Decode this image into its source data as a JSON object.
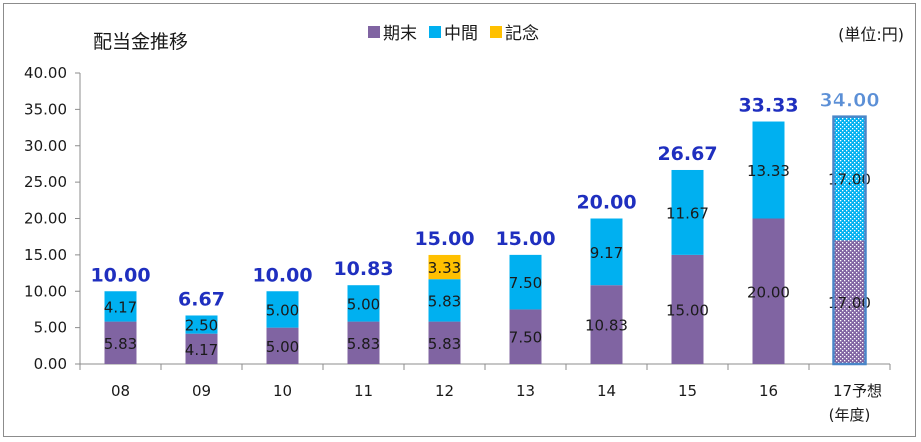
{
  "chart_data": {
    "type": "bar",
    "stacked": true,
    "title": "配当金推移",
    "unit_note": "(単位:円)",
    "x_axis_unit": "(年度)",
    "categories": [
      "08",
      "09",
      "10",
      "11",
      "12",
      "13",
      "14",
      "15",
      "16",
      "17予想"
    ],
    "ylim": [
      0,
      40
    ],
    "yticks": [
      "0.00",
      "5.00",
      "10.00",
      "15.00",
      "20.00",
      "25.00",
      "30.00",
      "35.00",
      "40.00"
    ],
    "grid": false,
    "legend_position": "top-center",
    "series": [
      {
        "name": "期末",
        "color": "#8064a2",
        "values": [
          5.83,
          4.17,
          5.0,
          5.83,
          5.83,
          7.5,
          10.83,
          15.0,
          20.0,
          17.0
        ],
        "labels": [
          "5.83",
          "4.17",
          "5.00",
          "5.83",
          "5.83",
          "7.50",
          "10.83",
          "15.00",
          "20.00",
          "17.00"
        ]
      },
      {
        "name": "中間",
        "color": "#00b0f0",
        "values": [
          4.17,
          2.5,
          5.0,
          5.0,
          5.83,
          7.5,
          9.17,
          11.67,
          13.33,
          17.0
        ],
        "labels": [
          "4.17",
          "2.50",
          "5.00",
          "5.00",
          "5.83",
          "7.50",
          "9.17",
          "11.67",
          "13.33",
          "17.00"
        ]
      },
      {
        "name": "記念",
        "color": "#ffc000",
        "values": [
          0,
          0,
          0,
          0,
          3.33,
          0,
          0,
          0,
          0,
          0
        ],
        "labels": [
          "",
          "",
          "",
          "",
          "3.33",
          "",
          "",
          "",
          "",
          ""
        ]
      }
    ],
    "totals": [
      "10.00",
      "6.67",
      "10.00",
      "10.83",
      "15.00",
      "15.00",
      "20.00",
      "26.67",
      "33.33",
      "34.00"
    ],
    "forecast_index": 9
  }
}
